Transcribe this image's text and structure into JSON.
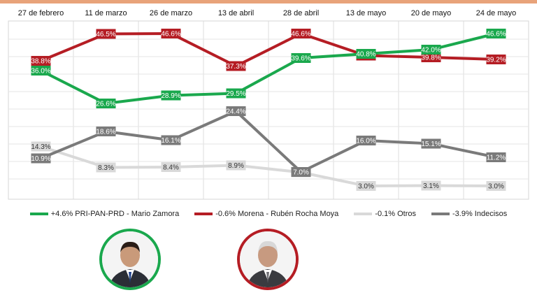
{
  "chart_data": {
    "type": "line",
    "categories": [
      "27 de febrero",
      "11 de marzo",
      "26 de marzo",
      "13 de abril",
      "28 de abril",
      "13 de mayo",
      "20 de mayo",
      "24 de mayo"
    ],
    "ylim": [
      0,
      50
    ],
    "grid": true,
    "legend_position": "bottom",
    "series": [
      {
        "name": "PRI-PAN-PRD - Mario Zamora",
        "change": "+4.6%",
        "color": "#1aa84d",
        "values": [
          36.0,
          26.6,
          28.9,
          29.5,
          39.6,
          40.8,
          42.0,
          46.6
        ],
        "labels": [
          "36.0%",
          "26.6%",
          "28.9%",
          "29.5%",
          "39.6%",
          "40.8%",
          "42.0%",
          "46.6%"
        ]
      },
      {
        "name": "Morena - Rubén Rocha Moya",
        "change": "-0.6%",
        "color": "#b51d24",
        "values": [
          38.8,
          46.5,
          46.6,
          37.3,
          46.6,
          40.3,
          39.8,
          39.2
        ],
        "labels": [
          "38.8%",
          "46.5%",
          "46.6%",
          "37.3%",
          "46.6%",
          "40.3%",
          "39.8%",
          "39.2%"
        ]
      },
      {
        "name": "Otros",
        "change": "-0.1%",
        "color": "#d9d9d9",
        "values": [
          14.3,
          8.3,
          8.4,
          8.9,
          6.9,
          3.0,
          3.1,
          3.0
        ],
        "labels": [
          "14.3%",
          "8.3%",
          "8.4%",
          "8.9%",
          "6.9%",
          "3.0%",
          "3.1%",
          "3.0%"
        ]
      },
      {
        "name": "Indecisos",
        "change": "-3.9%",
        "color": "#7a7a7a",
        "values": [
          10.9,
          18.6,
          16.1,
          24.4,
          7.0,
          16.0,
          15.1,
          11.2
        ],
        "labels": [
          "10.9%",
          "18.6%",
          "16.1%",
          "24.4%",
          "7.0%",
          "16.0%",
          "15.1%",
          "11.2%"
        ]
      }
    ]
  },
  "legend": [
    {
      "text": "+4.6% PRI-PAN-PRD - Mario Zamora",
      "color": "#1aa84d"
    },
    {
      "text": "-0.6% Morena - Rubén Rocha Moya",
      "color": "#b51d24"
    },
    {
      "text": "-0.1% Otros",
      "color": "#d9d9d9"
    },
    {
      "text": "-3.9% Indecisos",
      "color": "#7a7a7a"
    }
  ],
  "portraits": [
    {
      "name": "Mario Zamora",
      "ring_color": "#1aa84d"
    },
    {
      "name": "Rubén Rocha Moya",
      "ring_color": "#b51d24"
    }
  ]
}
